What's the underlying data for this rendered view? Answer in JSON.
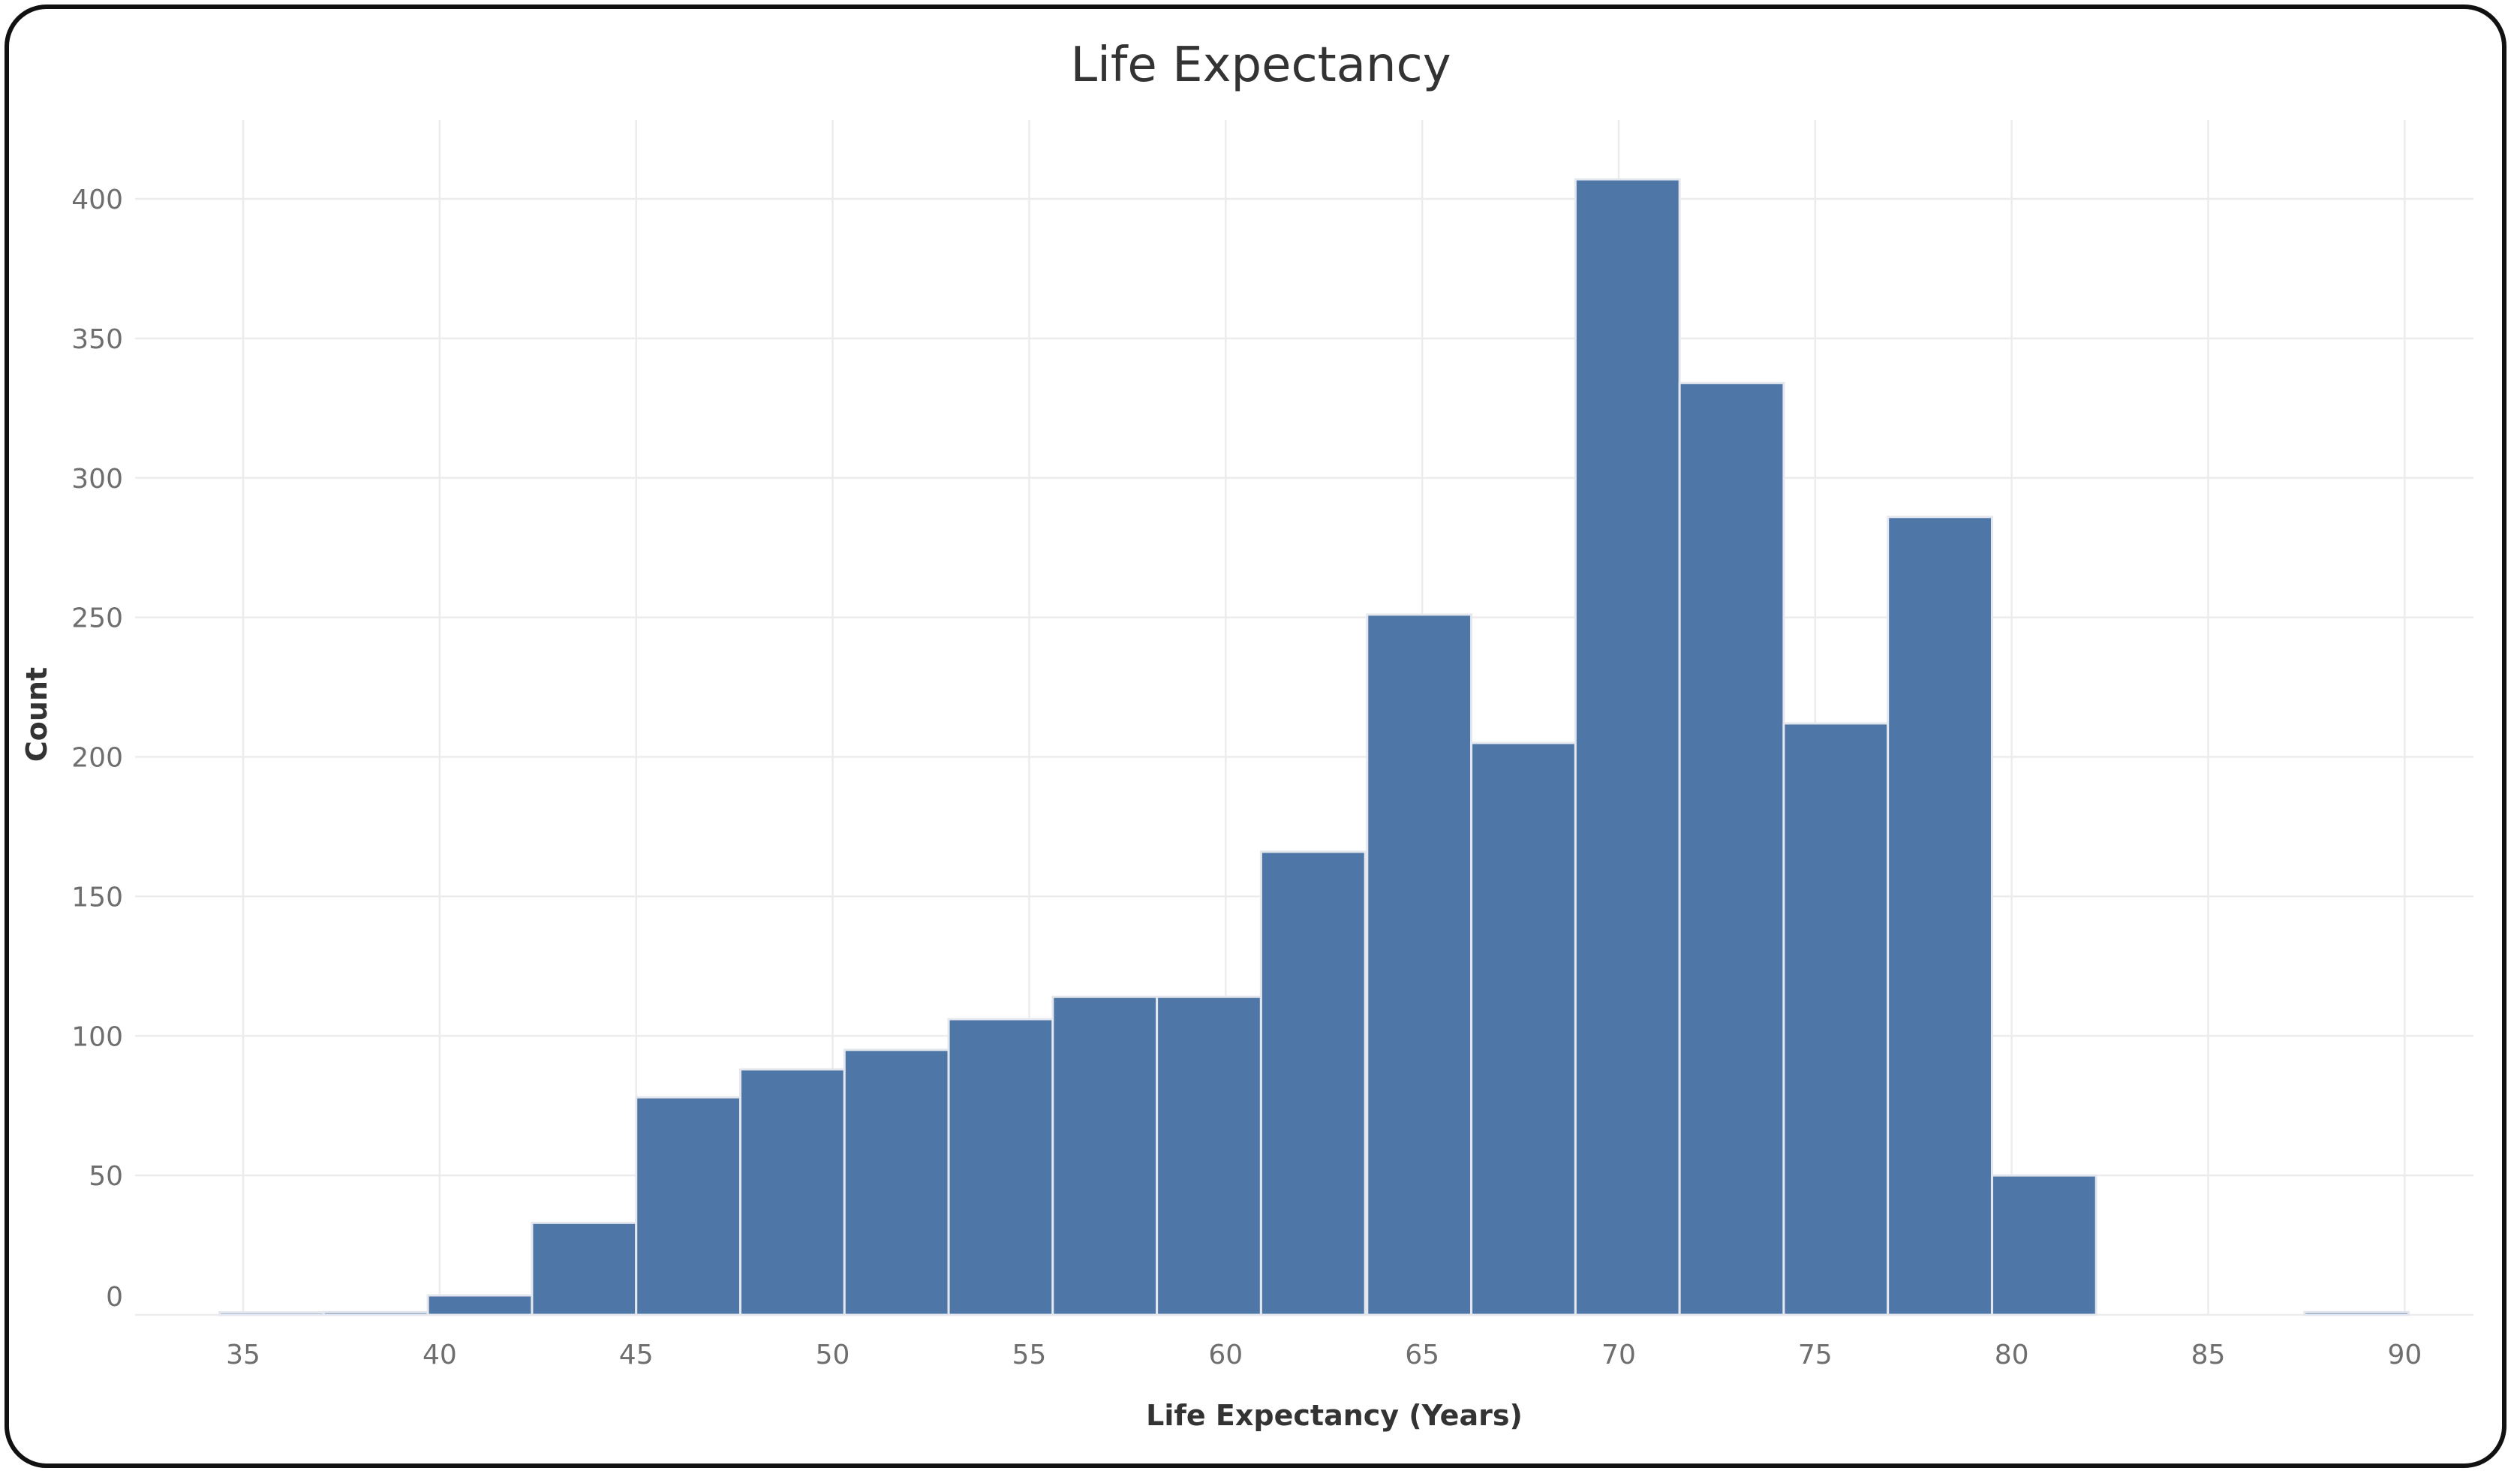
{
  "chart_data": {
    "type": "bar",
    "title": "Life Expectancy",
    "xlabel": "Life Expectancy (Years)",
    "ylabel": "Count",
    "x_ticks": [
      35,
      40,
      45,
      50,
      55,
      60,
      65,
      70,
      75,
      80,
      85,
      90
    ],
    "y_ticks": [
      0,
      50,
      100,
      150,
      200,
      250,
      300,
      350,
      400
    ],
    "xlim": [
      32.25,
      91.75
    ],
    "ylim": [
      0,
      400
    ],
    "grid": true,
    "bin_width": 2.65,
    "bin_starts": [
      34.4,
      37.05,
      39.7,
      42.35,
      45.0,
      47.65,
      50.3,
      52.95,
      55.6,
      58.25,
      60.9,
      63.6,
      66.25,
      68.9,
      71.55,
      74.2,
      76.85,
      79.5,
      87.45
    ],
    "values": [
      0,
      1,
      7,
      33,
      78,
      88,
      95,
      106,
      114,
      114,
      166,
      251,
      205,
      407,
      334,
      212,
      286,
      50,
      1
    ],
    "color": "#4e76a6"
  }
}
